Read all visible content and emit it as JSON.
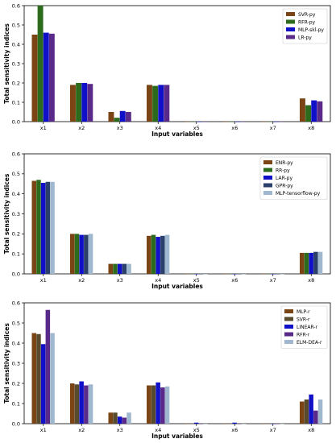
{
  "chart_data": [
    {
      "type": "bar",
      "xlabel": "Input variables",
      "ylabel": "Total sensitivity indices",
      "ylim": [
        0,
        0.6
      ],
      "yticks": [
        "0.0",
        "0.1",
        "0.2",
        "0.3",
        "0.4",
        "0.5",
        "0.6"
      ],
      "categories": [
        "x1",
        "x2",
        "x3",
        "x4",
        "x5",
        "x6",
        "x7",
        "x8"
      ],
      "legend_position": "top-right",
      "series": [
        {
          "name": "SVR-py",
          "color": "#7a4414",
          "values": [
            0.45,
            0.19,
            0.05,
            0.19,
            0.0,
            0.0,
            0.0,
            0.12
          ]
        },
        {
          "name": "RFR-py",
          "color": "#2c6b1c",
          "values": [
            0.6,
            0.2,
            0.02,
            0.185,
            0.0,
            0.0,
            0.0,
            0.085
          ]
        },
        {
          "name": "MLP-skl-py",
          "color": "#1010c8",
          "values": [
            0.46,
            0.2,
            0.055,
            0.19,
            0.0,
            0.0,
            0.0,
            0.11
          ]
        },
        {
          "name": "LR-py",
          "color": "#5a2a8a",
          "values": [
            0.455,
            0.195,
            0.05,
            0.19,
            0.0,
            0.0,
            0.0,
            0.105
          ]
        }
      ]
    },
    {
      "type": "bar",
      "xlabel": "Input variables",
      "ylabel": "Total sensitivity indices",
      "ylim": [
        0,
        0.6
      ],
      "yticks": [
        "0.0",
        "0.1",
        "0.2",
        "0.3",
        "0.4",
        "0.5",
        "0.6"
      ],
      "categories": [
        "x1",
        "x2",
        "x3",
        "x4",
        "x5",
        "x6",
        "x7",
        "x8"
      ],
      "legend_position": "top-right",
      "series": [
        {
          "name": "ENR-py",
          "color": "#7a4414",
          "values": [
            0.465,
            0.2,
            0.05,
            0.19,
            0.0,
            0.0,
            0.0,
            0.105
          ]
        },
        {
          "name": "RR-py",
          "color": "#2c6b1c",
          "values": [
            0.47,
            0.2,
            0.05,
            0.195,
            0.0,
            0.0,
            0.0,
            0.105
          ]
        },
        {
          "name": "LAR-py",
          "color": "#1010c8",
          "values": [
            0.455,
            0.195,
            0.05,
            0.185,
            0.0,
            0.0,
            0.0,
            0.105
          ]
        },
        {
          "name": "GPR-py",
          "color": "#2b3f6b",
          "values": [
            0.46,
            0.195,
            0.05,
            0.19,
            0.0,
            0.0,
            0.0,
            0.11
          ]
        },
        {
          "name": "MLP-tensorflow-py",
          "color": "#9fb8cf",
          "values": [
            0.46,
            0.2,
            0.05,
            0.195,
            0.0,
            0.0,
            0.0,
            0.11
          ]
        }
      ]
    },
    {
      "type": "bar",
      "xlabel": "Input variables",
      "ylabel": "Total sensitivity indices",
      "ylim": [
        0,
        0.6
      ],
      "yticks": [
        "0.0",
        "0.1",
        "0.2",
        "0.3",
        "0.4",
        "0.5",
        "0.6"
      ],
      "categories": [
        "x1",
        "x2",
        "x3",
        "x4",
        "x5",
        "x6",
        "x7",
        "x8"
      ],
      "legend_position": "top-right",
      "series": [
        {
          "name": "MLP-r",
          "color": "#7a4414",
          "values": [
            0.45,
            0.2,
            0.055,
            0.19,
            0.0,
            0.0,
            0.0,
            0.11
          ]
        },
        {
          "name": "SVR-r",
          "color": "#584a2c",
          "values": [
            0.445,
            0.195,
            0.055,
            0.19,
            0.0,
            0.0,
            0.0,
            0.12
          ]
        },
        {
          "name": "LINEAR-r",
          "color": "#1010c8",
          "values": [
            0.395,
            0.21,
            0.035,
            0.205,
            0.005,
            0.005,
            0.0,
            0.145
          ]
        },
        {
          "name": "RFR-r",
          "color": "#5a2a8a",
          "values": [
            0.565,
            0.19,
            0.03,
            0.18,
            0.0,
            0.0,
            0.0,
            0.065
          ]
        },
        {
          "name": "ELM-DEA-r",
          "color": "#9fb8cf",
          "values": [
            0.45,
            0.195,
            0.055,
            0.185,
            0.0,
            0.0,
            0.0,
            0.12
          ]
        }
      ]
    }
  ]
}
